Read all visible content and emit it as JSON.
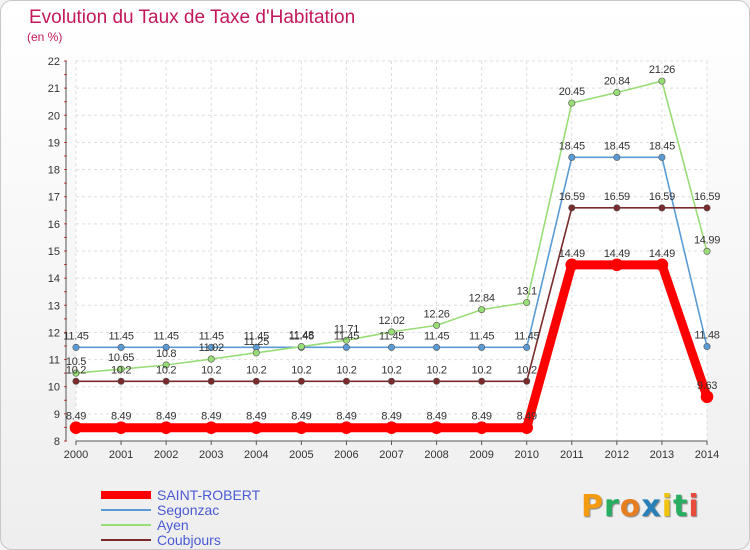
{
  "title": "Evolution du Taux de Taxe d'Habitation",
  "unit": "(en %)",
  "logo": {
    "text": "Proxiti",
    "colors": [
      "#f39c12",
      "#27ae60",
      "#e67e22",
      "#2980b9",
      "#f1c40f",
      "#27ae60",
      "#e74c3c"
    ]
  },
  "chart_data": {
    "type": "line",
    "x": [
      "2000",
      "2001",
      "2002",
      "2003",
      "2004",
      "2005",
      "2006",
      "2007",
      "2008",
      "2009",
      "2010",
      "2011",
      "2012",
      "2013",
      "2014"
    ],
    "ylim": [
      8,
      22
    ],
    "yticks": [
      8,
      9,
      10,
      11,
      12,
      13,
      14,
      15,
      16,
      17,
      18,
      19,
      20,
      21,
      22
    ],
    "grid": true,
    "legend_position": "bottom-left",
    "series": [
      {
        "name": "SAINT-ROBERT",
        "color": "#ff0000",
        "emphasis": true,
        "values": [
          8.49,
          8.49,
          8.49,
          8.49,
          8.49,
          8.49,
          8.49,
          8.49,
          8.49,
          8.49,
          8.49,
          14.49,
          14.49,
          14.49,
          9.63
        ],
        "labels": [
          "8.49",
          "8.49",
          "8.49",
          "8.49",
          "8.49",
          "8.49",
          "8.49",
          "8.49",
          "8.49",
          "8.49",
          "8.49",
          "14.49",
          "14.49",
          "14.49",
          "9.63"
        ]
      },
      {
        "name": "Segonzac",
        "color": "#5a9bd5",
        "emphasis": false,
        "values": [
          11.45,
          11.45,
          11.45,
          11.45,
          11.45,
          11.45,
          11.45,
          11.45,
          11.45,
          11.45,
          11.45,
          18.45,
          18.45,
          18.45,
          11.48
        ],
        "labels": [
          "11.45",
          "11.45",
          "11.45",
          "11.45",
          "11.45",
          "11.45",
          "11.45",
          "11.45",
          "11.45",
          "11.45",
          "11.45",
          "18.45",
          "18.45",
          "18.45",
          "11.48"
        ]
      },
      {
        "name": "Ayen",
        "color": "#99dd77",
        "emphasis": false,
        "values": [
          10.5,
          10.65,
          10.8,
          11.02,
          11.25,
          11.48,
          11.71,
          12.02,
          12.26,
          12.84,
          13.1,
          20.45,
          20.84,
          21.26,
          14.99
        ],
        "labels": [
          "10.5",
          "10.65",
          "10.8",
          "11.02",
          "11.25",
          "11.48",
          "11.71",
          "12.02",
          "12.26",
          "12.84",
          "13.1",
          "20.45",
          "20.84",
          "21.26",
          "14.99"
        ]
      },
      {
        "name": "Coubjours",
        "color": "#7a2a2a",
        "emphasis": false,
        "values": [
          10.2,
          10.2,
          10.2,
          10.2,
          10.2,
          10.2,
          10.2,
          10.2,
          10.2,
          10.2,
          10.2,
          16.59,
          16.59,
          16.59,
          16.59
        ],
        "labels": [
          "10.2",
          "10.2",
          "10.2",
          "10.2",
          "10.2",
          "10.2",
          "10.2",
          "10.2",
          "10.2",
          "10.2",
          "10.2",
          "16.59",
          "16.59",
          "16.59",
          "16.59"
        ]
      }
    ]
  }
}
